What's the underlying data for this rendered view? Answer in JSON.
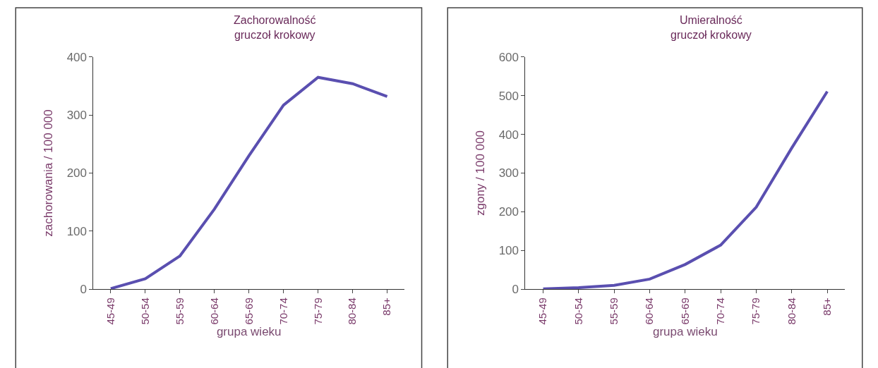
{
  "chart_data": [
    {
      "type": "line",
      "title": "Zachorowalność\ngruczoł krokowy",
      "xlabel": "grupa wieku",
      "ylabel": "zachorowania / 100 000",
      "categories": [
        "45-49",
        "50-54",
        "55-59",
        "60-64",
        "65-69",
        "70-74",
        "75-79",
        "80-84",
        "85+"
      ],
      "series": [
        {
          "color": "#5a4fb0",
          "values": [
            1,
            18,
            57,
            138,
            230,
            317,
            365,
            354,
            332
          ]
        }
      ],
      "ylim": [
        0,
        400
      ],
      "yticks": [
        0,
        100,
        200,
        300,
        400
      ],
      "marker": "none",
      "line_style": "solid"
    },
    {
      "type": "line",
      "title": "Umieralność\ngruczoł krokowy",
      "xlabel": "grupa wieku",
      "ylabel": "zgony / 100 000",
      "categories": [
        "45-49",
        "50-54",
        "55-59",
        "60-64",
        "65-69",
        "70-74",
        "75-79",
        "80-84",
        "85+"
      ],
      "series": [
        {
          "color": "#5a4fb0",
          "values": [
            1,
            4,
            10,
            26,
            64,
            114,
            212,
            365,
            511
          ]
        }
      ],
      "ylim": [
        0,
        600
      ],
      "yticks": [
        0,
        100,
        200,
        300,
        400,
        500,
        600
      ],
      "marker": "none",
      "line_style": "solid"
    }
  ]
}
